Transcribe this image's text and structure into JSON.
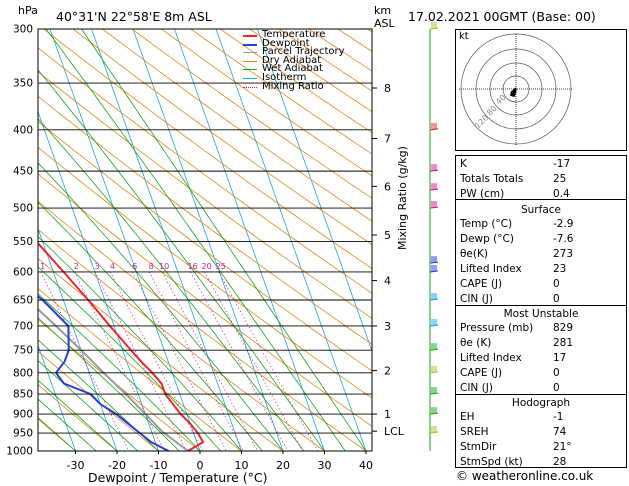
{
  "header": {
    "hpa_label": "hPa",
    "location": "40°31'N  22°58'E  8m  ASL",
    "km_label": "km",
    "asl_label": "ASL",
    "datetime": "17.02.2021  00GMT  (Base: 00)"
  },
  "legend": [
    {
      "name": "Temperature",
      "color": "#e8262c"
    },
    {
      "name": "Dewpoint",
      "color": "#2b3cd8"
    },
    {
      "name": "Parcel Trajectory",
      "color": "#9a9a9a"
    },
    {
      "name": "Dry Adiabat",
      "color": "#e08a1a"
    },
    {
      "name": "Wet Adiabat",
      "color": "#1aa51a"
    },
    {
      "name": "Isotherm",
      "color": "#1ea5e0"
    },
    {
      "name": "Mixing Ratio",
      "color": "#d01c8b"
    }
  ],
  "chart_data": {
    "type": "line",
    "title": "",
    "xlabel": "Dewpoint / Temperature (°C)",
    "ylabel": "hPa",
    "right_label": "Mixing Ratio (g/kg)",
    "xlim": [
      -35,
      40
    ],
    "x_ticks": [
      -30,
      -20,
      -10,
      0,
      10,
      20,
      30,
      40
    ],
    "pressure_levels": [
      300,
      350,
      400,
      450,
      500,
      550,
      600,
      650,
      700,
      750,
      800,
      850,
      900,
      950,
      1000
    ],
    "height_ticks": [
      {
        "label": "8",
        "p": 355
      },
      {
        "label": "7",
        "p": 410
      },
      {
        "label": "6",
        "p": 470
      },
      {
        "label": "5",
        "p": 540
      },
      {
        "label": "4",
        "p": 615
      },
      {
        "label": "3",
        "p": 700
      },
      {
        "label": "2",
        "p": 795
      },
      {
        "label": "1",
        "p": 900
      },
      {
        "label": "LCL",
        "p": 945
      }
    ],
    "mixing_ratio_labels": [
      "1",
      "2",
      "3",
      "4",
      "6",
      "8",
      "10",
      "16",
      "20",
      "25"
    ],
    "series": [
      {
        "name": "Temperature",
        "color": "#e8262c",
        "points": [
          [
            1013,
            2.2
          ],
          [
            1000,
            -2.9
          ],
          [
            975,
            1.5
          ],
          [
            950,
            1.0
          ],
          [
            925,
            0.0
          ],
          [
            900,
            -1.5
          ],
          [
            875,
            -2.5
          ],
          [
            850,
            -3.5
          ],
          [
            825,
            -3.5
          ],
          [
            800,
            -4.8
          ],
          [
            775,
            -6.5
          ],
          [
            750,
            -8.0
          ],
          [
            700,
            -11.0
          ],
          [
            650,
            -14.0
          ],
          [
            600,
            -17.5
          ],
          [
            550,
            -21.5
          ],
          [
            500,
            -25.5
          ],
          [
            450,
            -31.0
          ],
          [
            400,
            -37.5
          ],
          [
            350,
            -44.0
          ],
          [
            300,
            -51.5
          ]
        ]
      },
      {
        "name": "Dewpoint",
        "color": "#2b3cd8",
        "points": [
          [
            1013,
            -7.0
          ],
          [
            1000,
            -7.6
          ],
          [
            975,
            -11.0
          ],
          [
            950,
            -13.0
          ],
          [
            900,
            -17.0
          ],
          [
            875,
            -20.0
          ],
          [
            850,
            -21.5
          ],
          [
            825,
            -27.0
          ],
          [
            800,
            -28.0
          ],
          [
            775,
            -25.0
          ],
          [
            750,
            -23.0
          ],
          [
            700,
            -21.0
          ],
          [
            650,
            -25.0
          ],
          [
            625,
            -28.0
          ],
          [
            600,
            -31.5
          ],
          [
            585,
            -34.0
          ],
          [
            570,
            -24.0
          ],
          [
            550,
            -28.0
          ],
          [
            500,
            -30.0
          ],
          [
            475,
            -37.0
          ],
          [
            450,
            -39.0
          ],
          [
            425,
            -43.0
          ],
          [
            400,
            -53.0
          ],
          [
            380,
            -57.0
          ],
          [
            350,
            -60.0
          ],
          [
            300,
            -68.0
          ]
        ]
      },
      {
        "name": "Parcel Trajectory",
        "color": "#9a9a9a",
        "points": [
          [
            1000,
            -2.9
          ],
          [
            945,
            -7.5
          ],
          [
            900,
            -10.0
          ],
          [
            850,
            -13.0
          ],
          [
            800,
            -16.5
          ],
          [
            750,
            -20.0
          ],
          [
            700,
            -24.0
          ],
          [
            650,
            -28.5
          ],
          [
            600,
            -33.0
          ],
          [
            550,
            -38.0
          ],
          [
            500,
            -44.0
          ],
          [
            450,
            -50.5
          ],
          [
            400,
            -58.0
          ],
          [
            350,
            -66.0
          ],
          [
            300,
            -75.0
          ]
        ]
      }
    ]
  },
  "panel_top": [
    {
      "label": "K",
      "value": "-17"
    },
    {
      "label": "Totals Totals",
      "value": "25"
    },
    {
      "label": "PW (cm)",
      "value": "0.4"
    }
  ],
  "surface": {
    "title": "Surface",
    "rows": [
      {
        "label": "Temp (°C)",
        "value": "-2.9"
      },
      {
        "label": "Dewp (°C)",
        "value": "-7.6"
      },
      {
        "label": "θe(K)",
        "value": "273"
      },
      {
        "label": "Lifted Index",
        "value": "23"
      },
      {
        "label": "CAPE (J)",
        "value": "0"
      },
      {
        "label": "CIN (J)",
        "value": "0"
      }
    ]
  },
  "most_unstable": {
    "title": "Most Unstable",
    "rows": [
      {
        "label": "Pressure (mb)",
        "value": "829"
      },
      {
        "label": "θe (K)",
        "value": "281"
      },
      {
        "label": "Lifted Index",
        "value": "17"
      },
      {
        "label": "CAPE (J)",
        "value": "0"
      },
      {
        "label": "CIN (J)",
        "value": "0"
      }
    ]
  },
  "hodograph_table": {
    "title": "Hodograph",
    "rows": [
      {
        "label": "EH",
        "value": "-1"
      },
      {
        "label": "SREH",
        "value": "74"
      },
      {
        "label": "StmDir",
        "value": "21°"
      },
      {
        "label": "StmSpd (kt)",
        "value": "28"
      }
    ]
  },
  "hodograph": {
    "unit_label": "kt",
    "ring_labels": [
      "40",
      "80",
      "120"
    ]
  },
  "footer": {
    "copyright": "© weatheronline.co.uk"
  }
}
